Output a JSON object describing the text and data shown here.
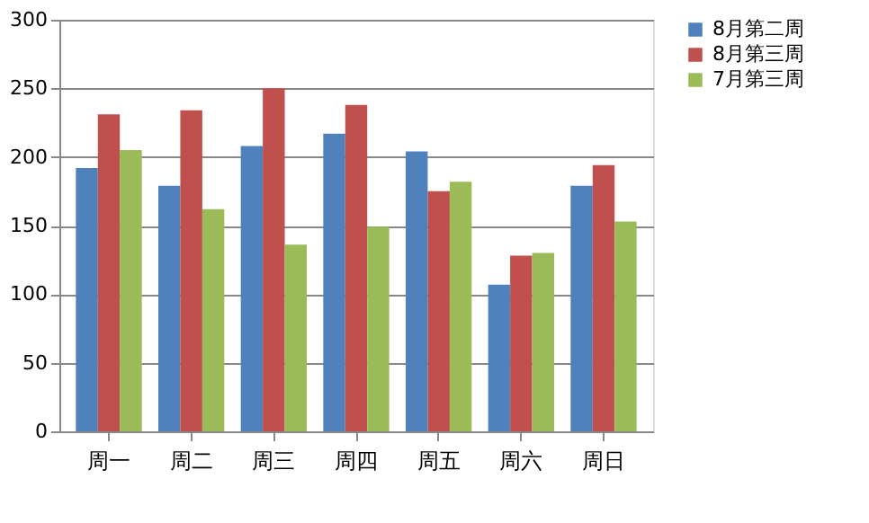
{
  "chart_data": {
    "type": "bar",
    "categories": [
      "周一",
      "周二",
      "周三",
      "周四",
      "周五",
      "周六",
      "周日"
    ],
    "series": [
      {
        "name": "8月第二周",
        "color": "#4f81bd",
        "values": [
          192,
          179,
          208,
          217,
          204,
          107,
          179
        ]
      },
      {
        "name": "8月第三周",
        "color": "#c0504d",
        "values": [
          231,
          234,
          250,
          238,
          175,
          128,
          194
        ]
      },
      {
        "name": "7月第三周",
        "color": "#9bbb59",
        "values": [
          205,
          162,
          136,
          149,
          182,
          130,
          153
        ]
      }
    ],
    "ylim": [
      0,
      300
    ],
    "yticks": [
      0,
      50,
      100,
      150,
      200,
      250,
      300
    ],
    "grid": "y",
    "legend": "right"
  }
}
